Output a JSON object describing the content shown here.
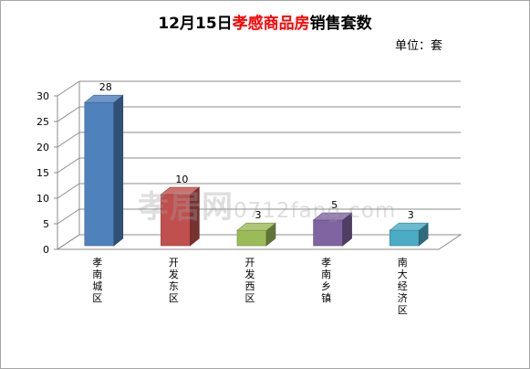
{
  "chart_data": {
    "type": "bar",
    "title_prefix": "12月15日",
    "title_highlight": "孝感商品房",
    "title_suffix": "销售套数",
    "unit_label": "单位：套",
    "categories": [
      "孝南城区",
      "开发东区",
      "开发西区",
      "孝南乡镇",
      "南大经济区"
    ],
    "values": [
      28,
      10,
      3,
      5,
      3
    ],
    "data_labels": [
      "28",
      "10",
      "3",
      "5",
      "3"
    ],
    "bar_colors": [
      "#4f81bd",
      "#c0504d",
      "#9bbb59",
      "#8064a2",
      "#4bacc6"
    ],
    "ylim": [
      0,
      30
    ],
    "yticks": [
      "0",
      "5",
      "10",
      "15",
      "20",
      "25",
      "30"
    ],
    "grid": true,
    "xlabel": "",
    "ylabel": ""
  },
  "watermark": {
    "main": "孝居网",
    "url": "0712fang.com"
  },
  "title_colors": {
    "default": "#000000",
    "highlight": "#ff0000"
  }
}
